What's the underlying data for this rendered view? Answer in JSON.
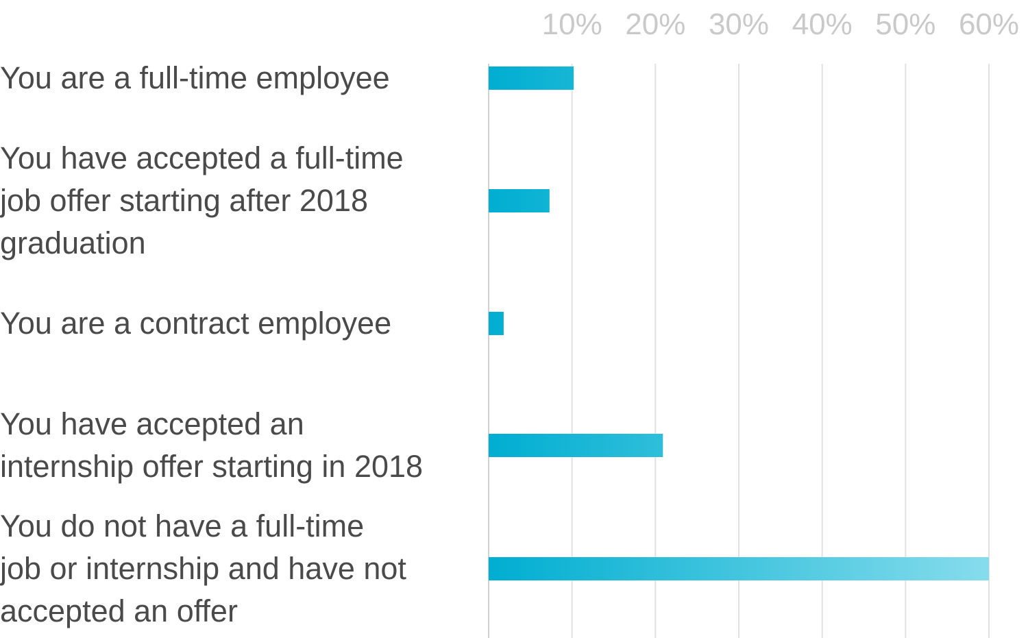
{
  "chart_data": {
    "type": "bar",
    "orientation": "horizontal",
    "title": "",
    "xlabel": "",
    "ylabel": "",
    "categories": [
      "You are a full-time employee",
      "You have accepted a full-time job offer starting after 2018 graduation",
      "You are a contract employee",
      "You have accepted an internship offer starting in 2018",
      "You do not have a full-time job or internship and have not accepted an offer"
    ],
    "category_lines": [
      [
        "You are a full-time employee"
      ],
      [
        "You have accepted a full-time",
        "job offer starting after 2018",
        "graduation"
      ],
      [
        "You are a contract employee"
      ],
      [
        "You have accepted an",
        "internship offer starting in 2018"
      ],
      [
        "You do not have a full-time",
        "job or internship and have not",
        "accepted an offer"
      ]
    ],
    "values": [
      10.2,
      7.3,
      1.8,
      20.9,
      60.0
    ],
    "xlim": [
      0,
      60
    ],
    "ticks": [
      10,
      20,
      30,
      40,
      50,
      60
    ],
    "tick_labels": [
      "10%",
      "20%",
      "30%",
      "40%",
      "50%",
      "60%"
    ],
    "grid": true,
    "tick_position": "top",
    "colors": {
      "bar_start": "#00aed1",
      "bar_end": "#86dcec",
      "grid": "#e1e1e1",
      "tick_text": "#c9c9c9",
      "label_text": "#4a4a4a"
    }
  }
}
